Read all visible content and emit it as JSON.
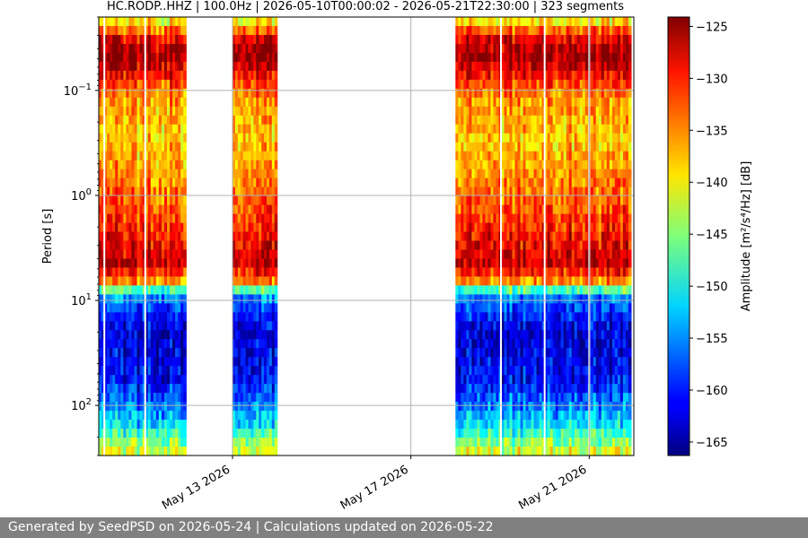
{
  "footer": {
    "text": "Generated by SeedPSD on 2026-05-24 | Calculations updated on 2026-05-22"
  },
  "chart_data": {
    "type": "heatmap",
    "title": "HC.RODP..HHZ | 100.0Hz | 2026-05-10T00:00:02 - 2026-05-21T22:30:00 | 323 segments",
    "ylabel": "Period [s]",
    "colorbar_label": "Amplitude [m²/s⁴/Hz] [dB]",
    "colorbar_ticks": [
      -125,
      -130,
      -135,
      -140,
      -145,
      -150,
      -155,
      -160,
      -165
    ],
    "colorbar_range": [
      -166.3,
      -124.1
    ],
    "colormap": "jet",
    "x_axis": {
      "type": "date",
      "range": [
        "2026-05-10T00:00:00",
        "2026-05-22T00:00:00"
      ],
      "ticks": [
        {
          "date": "2026-05-13",
          "label": "May 13 2026"
        },
        {
          "date": "2026-05-17",
          "label": "May 17 2026"
        },
        {
          "date": "2026-05-21",
          "label": "May 21 2026"
        }
      ]
    },
    "y_axis": {
      "scale": "log",
      "inverted": true,
      "range": [
        0.02,
        300
      ],
      "ticks": [
        {
          "value": 0.1,
          "base": "10",
          "exp": "−1"
        },
        {
          "value": 1,
          "base": "10",
          "exp": "0"
        },
        {
          "value": 10,
          "base": "10",
          "exp": "1"
        },
        {
          "value": 100,
          "base": "10",
          "exp": "2"
        }
      ]
    },
    "grid": true,
    "data_segments": [
      {
        "start": "2026-05-10T00:00:00",
        "end": "2026-05-11T23:00:00"
      },
      {
        "start": "2026-05-13T00:00:00",
        "end": "2026-05-14T00:00:00"
      },
      {
        "start": "2026-05-18T00:00:00",
        "end": "2026-05-21T22:30:00"
      }
    ],
    "data_gaps": [
      "2026-05-10T03:00:00",
      "2026-05-11T01:00:00",
      "2026-05-19T00:30:00",
      "2026-05-20T00:00:00",
      "2026-05-21T00:00:00"
    ],
    "psd_profile": [
      {
        "period": 0.02,
        "db": -142
      },
      {
        "period": 0.033,
        "db": -128
      },
      {
        "period": 0.05,
        "db": -125
      },
      {
        "period": 0.07,
        "db": -130
      },
      {
        "period": 0.12,
        "db": -136
      },
      {
        "period": 0.3,
        "db": -138
      },
      {
        "period": 1.0,
        "db": -134
      },
      {
        "period": 2.5,
        "db": -130
      },
      {
        "period": 4.5,
        "db": -127
      },
      {
        "period": 6.5,
        "db": -135
      },
      {
        "period": 8.0,
        "db": -148
      },
      {
        "period": 10.0,
        "db": -157
      },
      {
        "period": 20.0,
        "db": -163
      },
      {
        "period": 60.0,
        "db": -161
      },
      {
        "period": 150.0,
        "db": -152
      },
      {
        "period": 300.0,
        "db": -140
      }
    ]
  }
}
